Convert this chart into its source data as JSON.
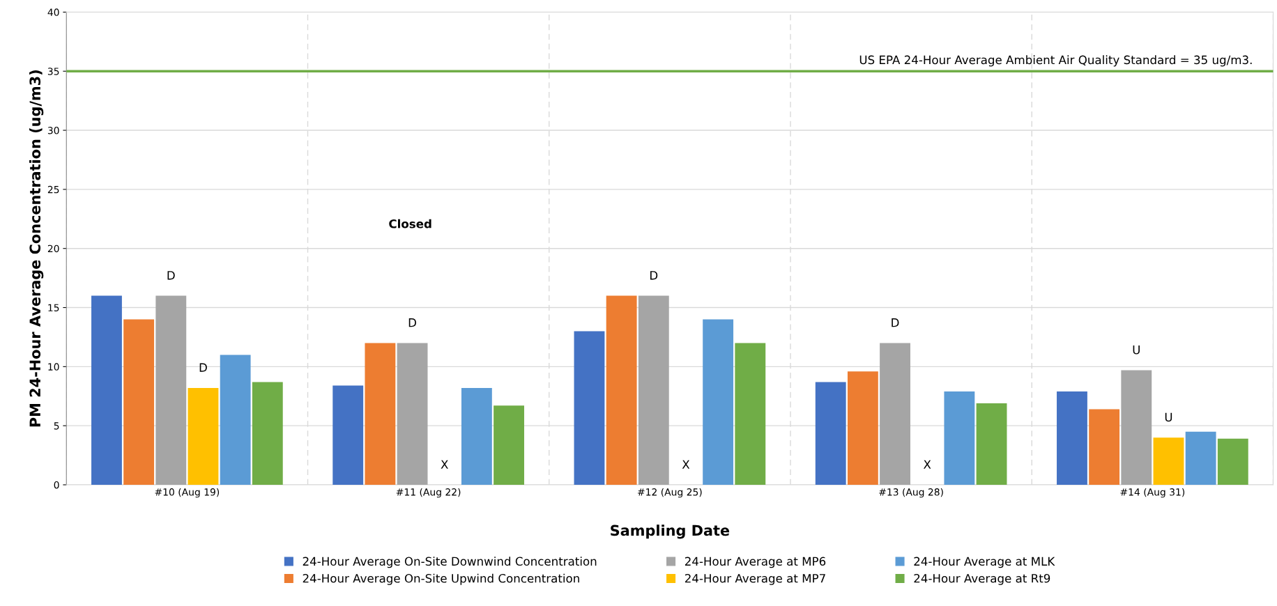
{
  "chart_data": {
    "type": "bar",
    "xlabel": "Sampling Date",
    "ylabel": "PM 24-Hour Average Concentration (ug/m3)",
    "categories": [
      "#10 (Aug 19)",
      "#11 (Aug 22)",
      "#12 (Aug 25)",
      "#13 (Aug 28)",
      "#14 (Aug 31)"
    ],
    "series": [
      {
        "name": "24-Hour Average On-Site Downwind Concentration",
        "color": "#4472c4",
        "values": [
          16,
          8.4,
          13,
          8.7,
          7.9
        ]
      },
      {
        "name": "24-Hour Average On-Site Upwind Concentration",
        "color": "#ed7d31",
        "values": [
          14,
          12,
          16,
          9.6,
          6.4
        ]
      },
      {
        "name": "24-Hour Average at MP6",
        "color": "#a5a5a5",
        "values": [
          16,
          12,
          16,
          12,
          9.7
        ]
      },
      {
        "name": "24-Hour Average at MP7",
        "color": "#ffc000",
        "values": [
          8.2,
          null,
          null,
          null,
          4.0
        ]
      },
      {
        "name": "24-Hour Average at MLK",
        "color": "#5b9bd5",
        "values": [
          11,
          8.2,
          14,
          7.9,
          4.5
        ]
      },
      {
        "name": "24-Hour Average at Rt9",
        "color": "#70ad47",
        "values": [
          8.7,
          6.7,
          12,
          6.9,
          3.9
        ]
      }
    ],
    "ylim": [
      0,
      40
    ],
    "yticks": [
      0,
      5,
      10,
      15,
      20,
      25,
      30,
      35,
      40
    ],
    "grid": true,
    "legend": "bottom",
    "ref_lines": [
      {
        "axis": "y",
        "value": 35,
        "label": "US EPA 24-Hour Average Ambient Air Quality Standard = 35 ug/m3.",
        "color": "#70ad47"
      }
    ],
    "annotations": [
      {
        "text": "D",
        "x": "#10 (Aug 19)",
        "y": 16
      },
      {
        "text": "D",
        "x": "#10 (Aug 19)",
        "y": 8.2
      },
      "Closed",
      {
        "text": "D",
        "x": "#11 (Aug 22)",
        "y": 12
      },
      {
        "text": "X",
        "x": "#11 (Aug 22)",
        "y": 0
      },
      {
        "text": "D",
        "x": "#12 (Aug 25)",
        "y": 16
      },
      {
        "text": "X",
        "x": "#12 (Aug 25)",
        "y": 0
      },
      {
        "text": "D",
        "x": "#13 (Aug 28)",
        "y": 12
      },
      {
        "text": "X",
        "x": "#13 (Aug 28)",
        "y": 0
      },
      {
        "text": "U",
        "x": "#14 (Aug 31)",
        "y": 9.7
      },
      {
        "text": "U",
        "x": "#14 (Aug 31)",
        "y": 4.0
      }
    ]
  }
}
